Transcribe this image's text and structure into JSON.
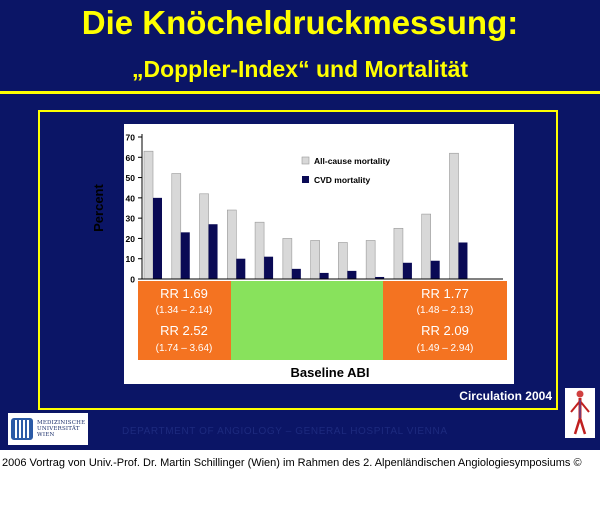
{
  "slide": {
    "title_line1": "Die Knöcheldruckmessung:",
    "title_line2": "„Doppler-Index“ und Mortalität",
    "citation": "Circulation 2004",
    "logo_text": [
      "MEDIZINISCHE",
      "UNIVERSITÄT",
      "WIEN"
    ],
    "department": "DEPARTMENT OF ANGIOLOGY – GENERAL HOSPITAL VIENNA",
    "footer": "2006 Vortrag von Univ.-Prof. Dr. Martin Schillinger (Wien) im Rahmen des 2. Alpenländischen Angiologiesymposiums ©"
  },
  "colors": {
    "background": "#0b1566",
    "title": "#ffff00",
    "all_cause": "#d8d8d8",
    "cvd": "#0a0a55",
    "orange": "#f47321",
    "green": "#88e25c"
  },
  "chart_data": {
    "type": "bar",
    "categories": [
      "",
      "",
      "",
      "",
      "",
      "",
      "",
      "",
      "",
      "",
      "",
      "",
      ""
    ],
    "series": [
      {
        "name": "All-cause mortality",
        "values": [
          63,
          52,
          42,
          34,
          28,
          20,
          19,
          18,
          19,
          25,
          32,
          62,
          0
        ]
      },
      {
        "name": "CVD mortality",
        "values": [
          40,
          23,
          27,
          10,
          11,
          5,
          3,
          4,
          1,
          8,
          9,
          18,
          0
        ]
      }
    ],
    "ylabel": "Percent",
    "xlabel": "Baseline ABI",
    "ylim": [
      0,
      70
    ],
    "yticks": [
      0,
      10,
      20,
      30,
      40,
      50,
      60,
      70
    ],
    "legend_position": "top-right",
    "annotations": {
      "left": {
        "rr1": "RR 1.69",
        "ci1": "(1.34 – 2.14)",
        "rr2": "RR 2.52",
        "ci2": "(1.74 – 3.64)"
      },
      "right": {
        "rr1": "RR 1.77",
        "ci1": "(1.48 – 2.13)",
        "rr2": "RR 2.09",
        "ci2": "(1.49 – 2.94)"
      }
    }
  }
}
